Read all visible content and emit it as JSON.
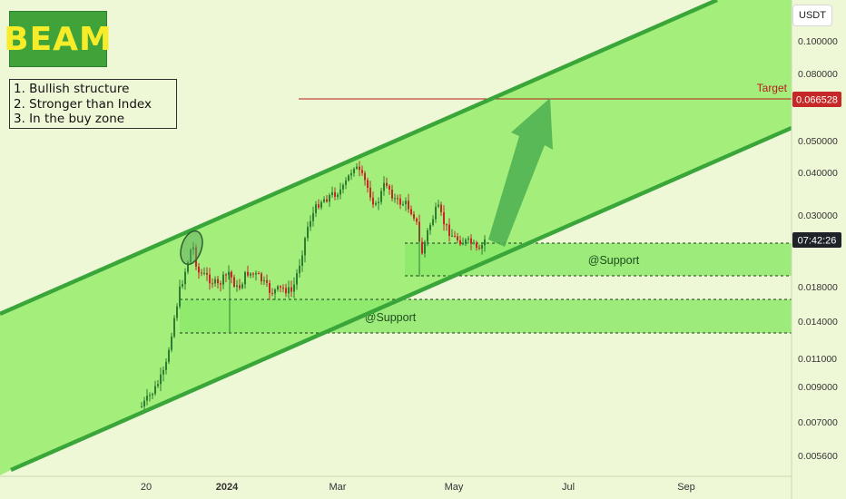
{
  "logo": {
    "text": "BEAM",
    "bg": "#3fa33a",
    "color": "#f6ec2a"
  },
  "notes": [
    "1. Bullish structure",
    "2. Stronger than Index",
    "3. In the buy zone"
  ],
  "currency_button": "USDT",
  "chart_data": {
    "type": "candlestick",
    "title": "",
    "x_tick_labels": [
      "20",
      "2024",
      "Mar",
      "May",
      "Jul",
      "Sep"
    ],
    "y_axis": {
      "scale": "log",
      "tick_labels": [
        "0.100000",
        "0.080000",
        "0.050000",
        "0.040000",
        "0.030000",
        "0.018000",
        "0.014000",
        "0.011000",
        "0.009000",
        "0.007000",
        "0.005600"
      ]
    },
    "price_badges": [
      {
        "label": "0.066528",
        "bg": "#c62828",
        "color": "#ffffff"
      },
      {
        "label": "07:42:26",
        "bg": "#1e2329",
        "color": "#ffffff"
      }
    ],
    "annotations": {
      "target_label": "Target",
      "target_price": 0.066528,
      "support_labels": [
        "@Support",
        "@Support"
      ],
      "support_zone_upper": [
        0.0215,
        0.0257
      ],
      "support_zone_lower": [
        0.0131,
        0.0163
      ]
    },
    "colors": {
      "channel": "#3aa63a",
      "band_fill": "#a4ef7c",
      "zone_fill": "#8de96b",
      "candle_up": "#2e7d32",
      "candle_down": "#c62828",
      "target_line": "#b71c1c",
      "arrow": "#4caf50"
    }
  }
}
